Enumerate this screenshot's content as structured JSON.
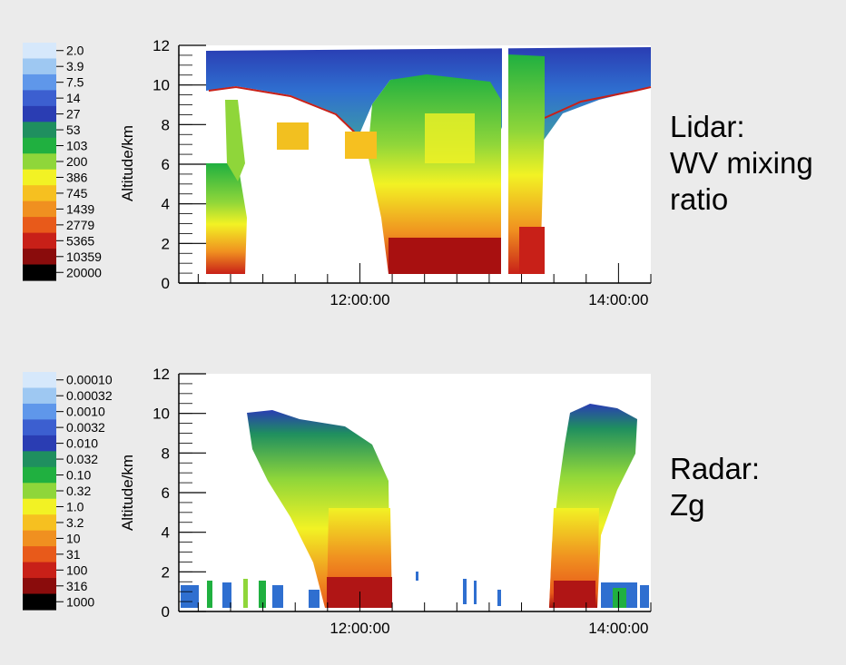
{
  "slide": {
    "background": "#ebebeb"
  },
  "panels": [
    {
      "label_lines": [
        "Lidar:",
        "WV mixing",
        "ratio"
      ]
    },
    {
      "label_lines": [
        "Radar:",
        "Zg"
      ]
    }
  ],
  "chart_data": [
    {
      "type": "heatmap",
      "title": "",
      "xlabel": "",
      "ylabel": "Altitude/km",
      "ylim": [
        0,
        12
      ],
      "y_ticks": [
        "0",
        "2",
        "4",
        "6",
        "8",
        "10",
        "12"
      ],
      "x_tick_labels": [
        "12:00:00",
        "14:00:00"
      ],
      "x_range_hours": [
        10.6,
        14.25
      ],
      "colorbar": {
        "ticks": [
          "2.0",
          "3.9",
          "7.5",
          "14",
          "27",
          "53",
          "103",
          "200",
          "386",
          "745",
          "1439",
          "2779",
          "5365",
          "10359",
          "20000"
        ],
        "colors": [
          "#d6e8fb",
          "#9ec8f2",
          "#5f97ea",
          "#3c5fd0",
          "#2a3db3",
          "#1f8f5f",
          "#20b040",
          "#8fd63a",
          "#f2f224",
          "#f6c020",
          "#f09020",
          "#e85a1a",
          "#c82018",
          "#8a0c0c",
          "#000000"
        ],
        "scale": "log"
      },
      "gridlines": false
    },
    {
      "type": "heatmap",
      "title": "",
      "xlabel": "",
      "ylabel": "Altitude/km",
      "ylim": [
        0,
        12
      ],
      "y_ticks": [
        "0",
        "2",
        "4",
        "6",
        "8",
        "10",
        "12"
      ],
      "x_tick_labels": [
        "12:00:00",
        "14:00:00"
      ],
      "x_range_hours": [
        10.6,
        14.25
      ],
      "colorbar": {
        "ticks": [
          "0.00010",
          "0.00032",
          "0.0010",
          "0.0032",
          "0.010",
          "0.032",
          "0.10",
          "0.32",
          "1.0",
          "3.2",
          "10",
          "31",
          "100",
          "316",
          "1000"
        ],
        "colors": [
          "#d6e8fb",
          "#9ec8f2",
          "#5f97ea",
          "#3c5fd0",
          "#2a3db3",
          "#1f8f5f",
          "#20b040",
          "#8fd63a",
          "#f2f224",
          "#f6c020",
          "#f09020",
          "#e85a1a",
          "#c82018",
          "#8a0c0c",
          "#000000"
        ],
        "scale": "log"
      },
      "gridlines": false
    }
  ]
}
